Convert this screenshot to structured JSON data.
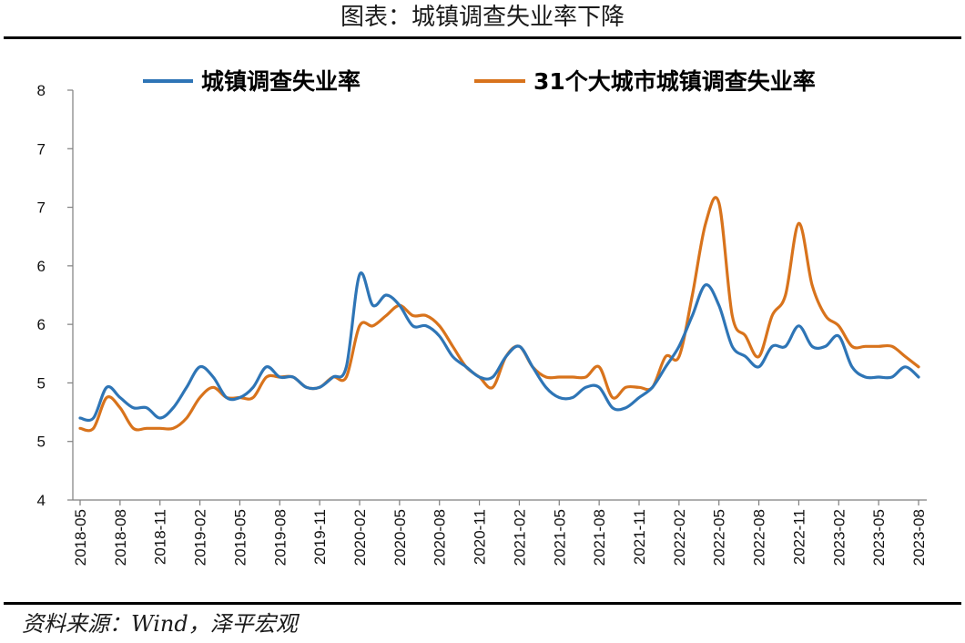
{
  "title": "图表：城镇调查失业率下降",
  "source": "资料来源：Wind，泽平宏观",
  "colors": {
    "blue": "#2e75b6",
    "orange": "#d8731c",
    "axis": "#7f7f7f"
  },
  "chart_data": {
    "type": "line",
    "title": "图表：城镇调查失业率下降",
    "ylim": [
      4,
      8
    ],
    "y_tick_labels": [
      "4",
      "5",
      "5",
      "6",
      "6",
      "7",
      "7",
      "8"
    ],
    "x_tick_labels": [
      "2018-05",
      "2018-08",
      "2018-11",
      "2019-02",
      "2019-05",
      "2019-08",
      "2019-11",
      "2020-02",
      "2020-05",
      "2020-08",
      "2020-11",
      "2021-02",
      "2021-05",
      "2021-08",
      "2021-11",
      "2022-02",
      "2022-05",
      "2022-08",
      "2022-11",
      "2023-02",
      "2023-05",
      "2023-08"
    ],
    "legend_position": "top",
    "grid": false,
    "x": [
      "2018-05",
      "2018-06",
      "2018-07",
      "2018-08",
      "2018-09",
      "2018-10",
      "2018-11",
      "2018-12",
      "2019-01",
      "2019-02",
      "2019-03",
      "2019-04",
      "2019-05",
      "2019-06",
      "2019-07",
      "2019-08",
      "2019-09",
      "2019-10",
      "2019-11",
      "2019-12",
      "2020-01",
      "2020-02",
      "2020-03",
      "2020-04",
      "2020-05",
      "2020-06",
      "2020-07",
      "2020-08",
      "2020-09",
      "2020-10",
      "2020-11",
      "2020-12",
      "2021-01",
      "2021-02",
      "2021-03",
      "2021-04",
      "2021-05",
      "2021-06",
      "2021-07",
      "2021-08",
      "2021-09",
      "2021-10",
      "2021-11",
      "2021-12",
      "2022-01",
      "2022-02",
      "2022-03",
      "2022-04",
      "2022-05",
      "2022-06",
      "2022-07",
      "2022-08",
      "2022-09",
      "2022-10",
      "2022-11",
      "2022-12",
      "2023-01",
      "2023-02",
      "2023-03",
      "2023-04",
      "2023-05",
      "2023-06",
      "2023-07",
      "2023-08"
    ],
    "series": [
      {
        "name": "城镇调查失业率",
        "color": "#2e75b6",
        "values": [
          4.8,
          4.8,
          5.1,
          5.0,
          4.9,
          4.9,
          4.8,
          4.9,
          5.1,
          5.3,
          5.2,
          5.0,
          5.0,
          5.1,
          5.3,
          5.2,
          5.2,
          5.1,
          5.1,
          5.2,
          5.3,
          6.2,
          5.9,
          6.0,
          5.9,
          5.7,
          5.7,
          5.6,
          5.4,
          5.3,
          5.2,
          5.2,
          5.4,
          5.5,
          5.3,
          5.1,
          5.0,
          5.0,
          5.1,
          5.1,
          4.9,
          4.9,
          5.0,
          5.1,
          5.3,
          5.5,
          5.8,
          6.1,
          5.9,
          5.5,
          5.4,
          5.3,
          5.5,
          5.5,
          5.7,
          5.5,
          5.5,
          5.6,
          5.3,
          5.2,
          5.2,
          5.2,
          5.3,
          5.2
        ]
      },
      {
        "name": "31个大城市城镇调查失业率",
        "color": "#d8731c",
        "values": [
          4.7,
          4.7,
          5.0,
          4.9,
          4.7,
          4.7,
          4.7,
          4.7,
          4.8,
          5.0,
          5.1,
          5.0,
          5.0,
          5.0,
          5.2,
          5.2,
          5.2,
          5.1,
          5.1,
          5.2,
          5.2,
          5.7,
          5.7,
          5.8,
          5.9,
          5.8,
          5.8,
          5.7,
          5.5,
          5.3,
          5.2,
          5.1,
          5.4,
          5.5,
          5.3,
          5.2,
          5.2,
          5.2,
          5.2,
          5.3,
          5.0,
          5.1,
          5.1,
          5.1,
          5.4,
          5.4,
          6.0,
          6.7,
          6.9,
          5.8,
          5.6,
          5.4,
          5.8,
          6.0,
          6.7,
          6.1,
          5.8,
          5.7,
          5.5,
          5.5,
          5.5,
          5.5,
          5.4,
          5.3
        ]
      }
    ]
  }
}
